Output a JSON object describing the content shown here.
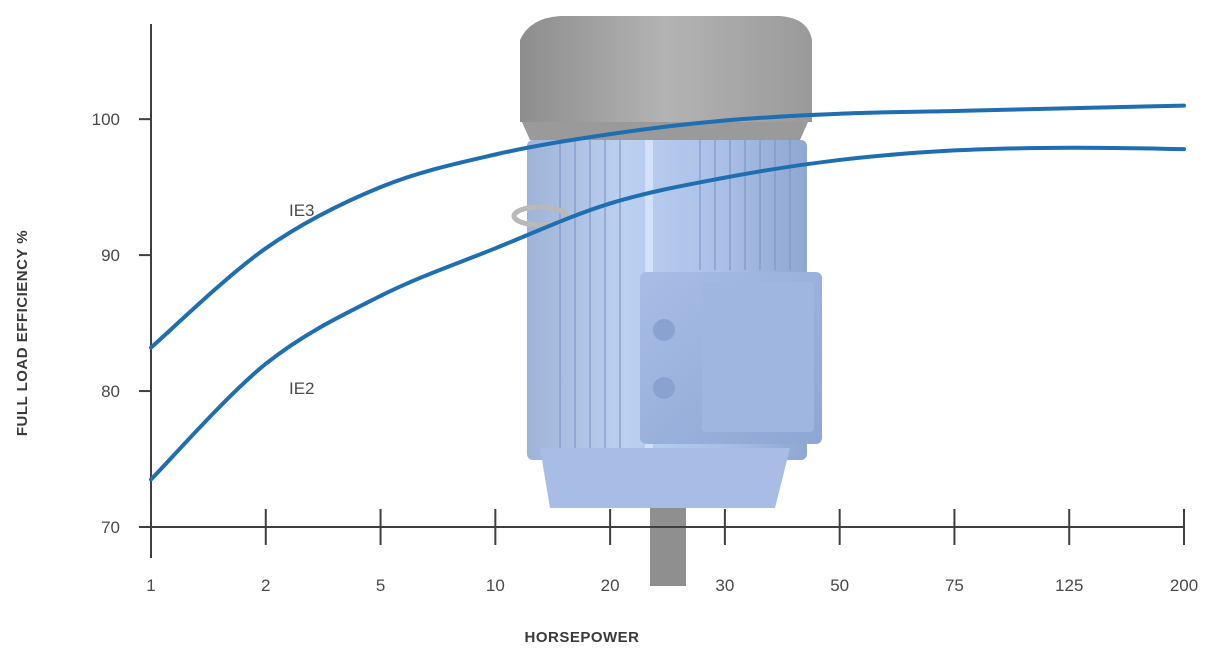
{
  "chart_data": {
    "type": "line",
    "xlabel": "HORSEPOWER",
    "ylabel": "FULL LOAD EFFICIENCY %",
    "categories": [
      "1",
      "2",
      "5",
      "10",
      "20",
      "30",
      "50",
      "75",
      "125",
      "200"
    ],
    "y_ticks": [
      70,
      80,
      90,
      100
    ],
    "ylim": [
      70,
      107
    ],
    "grid": false,
    "series": [
      {
        "name": "IE3",
        "color": "#1f6eb2",
        "values": [
          83.2,
          90.5,
          95.0,
          97.4,
          98.9,
          99.9,
          100.4,
          100.6,
          100.8,
          101.0
        ]
      },
      {
        "name": "IE2",
        "color": "#1f6eb2",
        "values": [
          73.5,
          82.0,
          87.0,
          90.5,
          93.8,
          95.7,
          97.0,
          97.7,
          97.9,
          97.8
        ]
      }
    ]
  },
  "background_image": "electric-motor-icon"
}
